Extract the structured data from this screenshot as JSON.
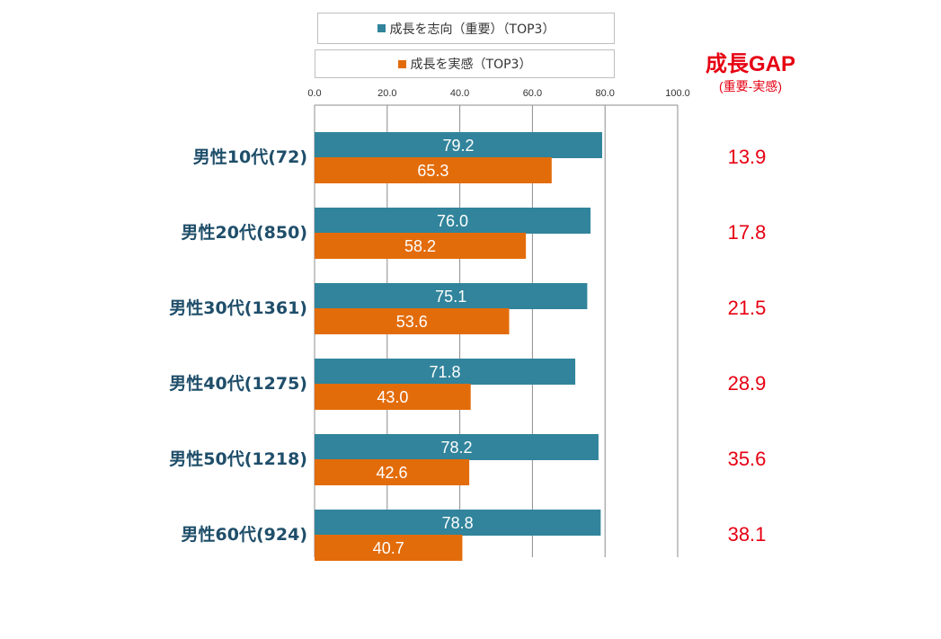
{
  "chart_data": {
    "type": "bar",
    "orientation": "horizontal",
    "categories": [
      "男性10代(72)",
      "男性20代(850)",
      "男性30代(1361)",
      "男性40代(1275)",
      "男性50代(1218)",
      "男性60代(924)"
    ],
    "series": [
      {
        "name": "成長を志向（重要）（TOP3）",
        "color": "#31849b",
        "values": [
          79.2,
          76.0,
          75.1,
          71.8,
          78.2,
          78.8
        ]
      },
      {
        "name": "成長を実感（TOP3）",
        "color": "#e36c0a",
        "values": [
          65.3,
          58.2,
          53.6,
          43.0,
          42.6,
          40.7
        ]
      }
    ],
    "gap": {
      "title": "成長GAP",
      "subtitle": "(重要-実感)",
      "values": [
        "13.9",
        "17.8",
        "21.5",
        "28.9",
        "35.6",
        "38.1"
      ]
    },
    "xlim": [
      0,
      100
    ],
    "xticks": [
      "0.0",
      "20.0",
      "40.0",
      "60.0",
      "80.0",
      "100.0"
    ],
    "grid": true,
    "legend": "top"
  }
}
